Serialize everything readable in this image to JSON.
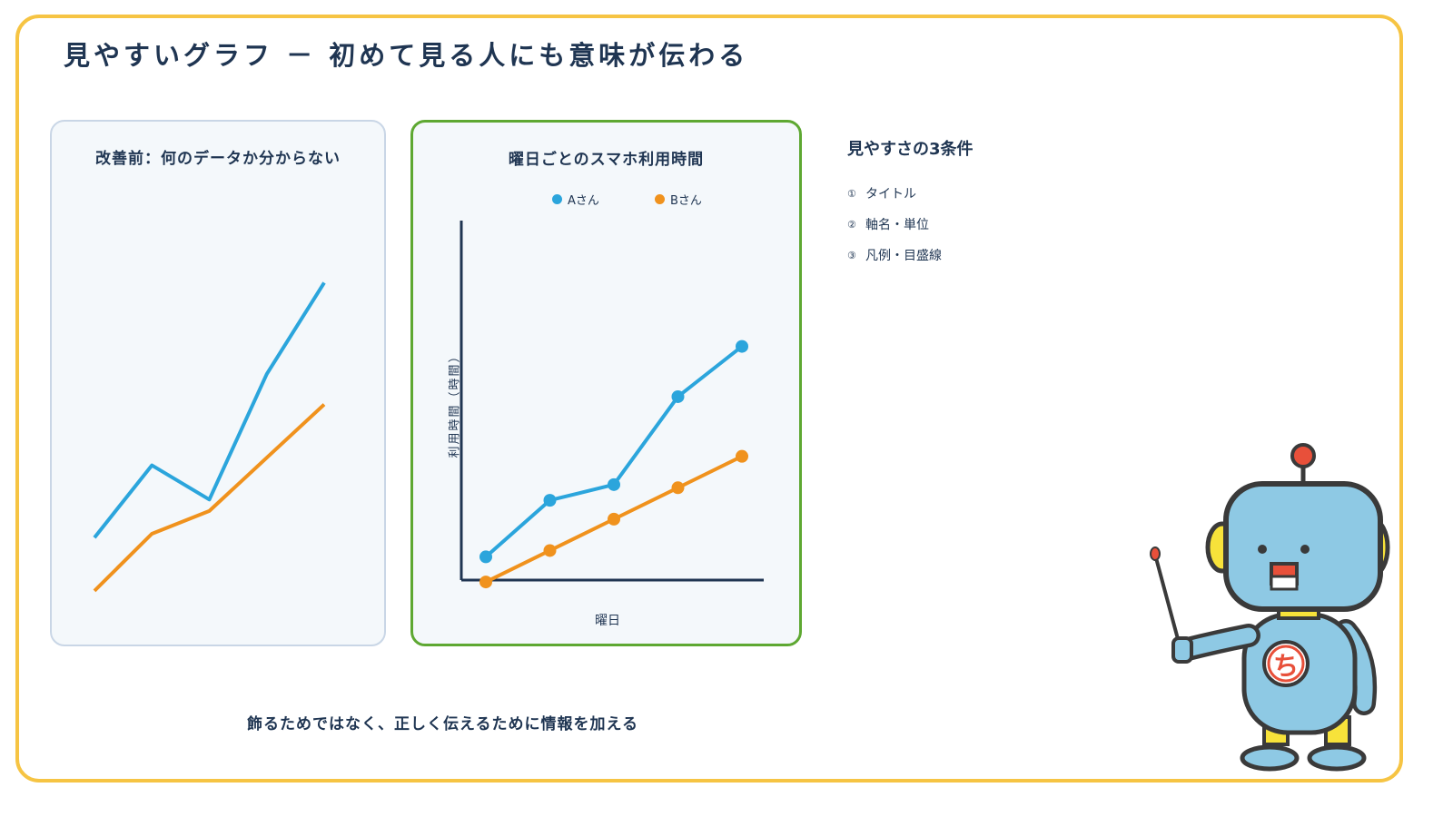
{
  "title": "見やすいグラフ － 初めて見る人にも意味が伝わる",
  "before_panel": {
    "heading": "改善前：何のデータか分からない"
  },
  "after_panel": {
    "heading": "曜日ごとのスマホ利用時間"
  },
  "conditions": {
    "title": "見やすさの3条件",
    "items": [
      {
        "num": "①",
        "label": "タイトル"
      },
      {
        "num": "②",
        "label": "軸名・単位"
      },
      {
        "num": "③",
        "label": "凡例・目盛線"
      }
    ]
  },
  "caption": "飾るためではなく、正しく伝えるために情報を加える",
  "robot": {
    "badge": "ち"
  },
  "colors": {
    "frame": "#f6c443",
    "series_a": "#2ba5dc",
    "series_b": "#f0921d",
    "good_border": "#5ea832",
    "text": "#1f3552"
  },
  "chart_data": [
    {
      "type": "line",
      "title": "",
      "xlabel": "",
      "ylabel": "",
      "x": [
        1,
        2,
        3,
        4,
        5
      ],
      "ylim": [
        0,
        5
      ],
      "axes": false,
      "series": [
        {
          "values": [
            1.0,
            1.95,
            1.5,
            3.15,
            4.35
          ]
        },
        {
          "values": [
            0.3,
            1.05,
            1.35,
            2.05,
            2.75
          ]
        }
      ]
    },
    {
      "type": "line",
      "title": "曜日ごとのスマホ利用時間",
      "xlabel": "曜日",
      "ylabel": "利用時間（時間）",
      "x": [
        1,
        2,
        3,
        4,
        5
      ],
      "ylim": [
        0,
        5
      ],
      "legend": "top",
      "series": [
        {
          "name": "Aさん",
          "values": [
            0.5,
            1.4,
            1.65,
            3.05,
            3.85
          ]
        },
        {
          "name": "Bさん",
          "values": [
            0.1,
            0.6,
            1.1,
            1.6,
            2.1
          ]
        }
      ]
    }
  ]
}
